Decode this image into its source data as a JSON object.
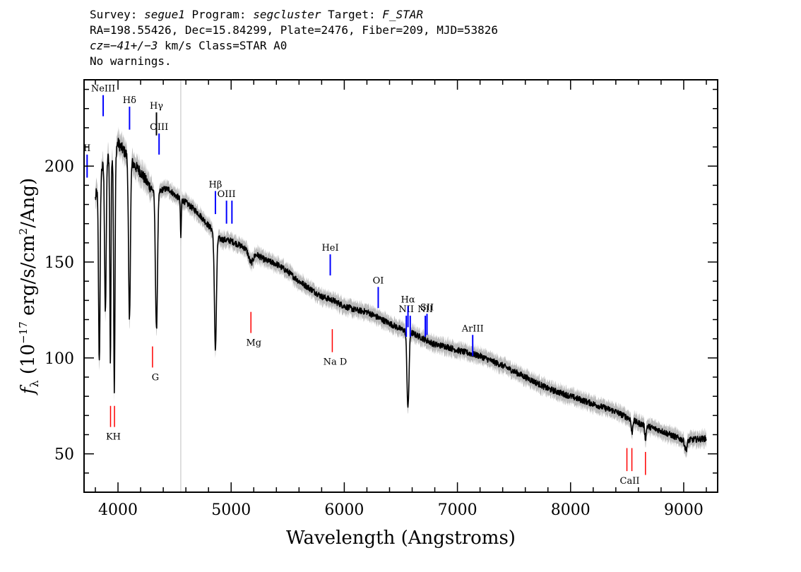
{
  "header": {
    "line1": {
      "survey_label": "Survey: ",
      "survey": "segue1",
      "program_label": " Program: ",
      "program": "segcluster",
      "target_label": " Target: ",
      "target": "F_STAR"
    },
    "line2": "RA=198.55426, Dec=15.84299, Plate=2476, Fiber=209, MJD=53826",
    "line3": {
      "cz": "cz=−41+/−3",
      "rest": " km/s Class=STAR A0"
    },
    "line4": "No warnings."
  },
  "chart_data": {
    "type": "line",
    "xlabel": "Wavelength (Angstroms)",
    "ylabel": "f_λ (10^-17 erg/s/cm²/Ang)",
    "xlim": [
      3700,
      9300
    ],
    "ylim": [
      30,
      245
    ],
    "xticks": [
      4000,
      5000,
      6000,
      7000,
      8000,
      9000
    ],
    "yticks": [
      50,
      100,
      150,
      200
    ],
    "vertical_marker_x": 4555,
    "colors": {
      "spectrum": "#000000",
      "error": "#b3b3b3",
      "emission": "#0000ff",
      "absorption": "#ff0000",
      "marker": "#bdbdbd"
    },
    "continuum": [
      [
        3800,
        183
      ],
      [
        3850,
        198
      ],
      [
        3900,
        204
      ],
      [
        3950,
        206
      ],
      [
        4000,
        212
      ],
      [
        4050,
        208
      ],
      [
        4100,
        204
      ],
      [
        4150,
        200
      ],
      [
        4200,
        197
      ],
      [
        4250,
        192
      ],
      [
        4300,
        188
      ],
      [
        4350,
        186
      ],
      [
        4400,
        188
      ],
      [
        4450,
        188
      ],
      [
        4500,
        185
      ],
      [
        4600,
        181
      ],
      [
        4700,
        176
      ],
      [
        4800,
        169
      ],
      [
        4900,
        162
      ],
      [
        5000,
        161
      ],
      [
        5100,
        158
      ],
      [
        5200,
        155
      ],
      [
        5300,
        151
      ],
      [
        5400,
        149
      ],
      [
        5500,
        145
      ],
      [
        5600,
        140
      ],
      [
        5700,
        136
      ],
      [
        5800,
        132
      ],
      [
        5900,
        130
      ],
      [
        6000,
        127
      ],
      [
        6100,
        125
      ],
      [
        6200,
        124
      ],
      [
        6300,
        121
      ],
      [
        6400,
        118
      ],
      [
        6500,
        115
      ],
      [
        6600,
        113
      ],
      [
        6700,
        110
      ],
      [
        6800,
        107
      ],
      [
        6900,
        106
      ],
      [
        7000,
        104
      ],
      [
        7200,
        101
      ],
      [
        7400,
        96
      ],
      [
        7600,
        90
      ],
      [
        7800,
        84
      ],
      [
        8000,
        80
      ],
      [
        8200,
        76
      ],
      [
        8400,
        72
      ],
      [
        8600,
        66
      ],
      [
        8800,
        62
      ],
      [
        9000,
        57
      ],
      [
        9200,
        58
      ]
    ],
    "absorption_features": [
      {
        "x": 3835,
        "depth": 95,
        "width": 7
      },
      {
        "x": 3889,
        "depth": 80,
        "width": 7
      },
      {
        "x": 3933,
        "depth": 107,
        "width": 5
      },
      {
        "x": 3968,
        "depth": 125,
        "width": 6
      },
      {
        "x": 4101,
        "depth": 85,
        "width": 8
      },
      {
        "x": 4340,
        "depth": 72,
        "width": 9
      },
      {
        "x": 4555,
        "depth": 20,
        "width": 4
      },
      {
        "x": 4861,
        "depth": 60,
        "width": 9
      },
      {
        "x": 5175,
        "depth": 6,
        "width": 20
      },
      {
        "x": 6563,
        "depth": 40,
        "width": 9
      },
      {
        "x": 8542,
        "depth": 7,
        "width": 6
      },
      {
        "x": 8662,
        "depth": 7,
        "width": 6
      },
      {
        "x": 9020,
        "depth": 5,
        "width": 10
      }
    ],
    "emission_lines": [
      {
        "label": "NeIII",
        "x": 3869,
        "y_top": 237,
        "y_bottom": 226
      },
      {
        "label": "Hδ",
        "x": 4102,
        "y_top": 231,
        "y_bottom": 219
      },
      {
        "label": "Hγ",
        "x": 4340,
        "y_top": 228,
        "y_bottom": 216,
        "color": "black"
      },
      {
        "label": "OIII",
        "x": 4363,
        "y_top": 217,
        "y_bottom": 206
      },
      {
        "label": "II",
        "x": 3727,
        "y_top": 206,
        "y_bottom": 194
      },
      {
        "label": "Hβ",
        "x": 4861,
        "y_top": 187,
        "y_bottom": 175
      },
      {
        "label": "OIII",
        "x": 4959,
        "y_top": 182,
        "y_bottom": 170
      },
      {
        "label": "",
        "x": 5007,
        "y_top": 182,
        "y_bottom": 170
      },
      {
        "label": "HeI",
        "x": 5876,
        "y_top": 154,
        "y_bottom": 143
      },
      {
        "label": "OI",
        "x": 6300,
        "y_top": 137,
        "y_bottom": 126
      },
      {
        "label": "NII",
        "x": 6548,
        "y_top": 122,
        "y_bottom": 111
      },
      {
        "label": "Hα",
        "x": 6563,
        "y_top": 127,
        "y_bottom": 116
      },
      {
        "label": "",
        "x": 6583,
        "y_top": 122,
        "y_bottom": 111
      },
      {
        "label": "NII",
        "x": 6716,
        "y_top": 122,
        "y_bottom": 111
      },
      {
        "label": "SII",
        "x": 6731,
        "y_top": 123,
        "y_bottom": 112
      },
      {
        "label": "ArIII",
        "x": 7135,
        "y_top": 112,
        "y_bottom": 101
      }
    ],
    "absorption_lines": [
      {
        "label": "KH",
        "x": 3934,
        "y_top": 75,
        "y_bottom": 64
      },
      {
        "label": "",
        "x": 3969,
        "y_top": 75,
        "y_bottom": 64
      },
      {
        "label": "G",
        "x": 4305,
        "y_top": 106,
        "y_bottom": 95
      },
      {
        "label": "Mg",
        "x": 5175,
        "y_top": 124,
        "y_bottom": 113
      },
      {
        "label": "Na D",
        "x": 5894,
        "y_top": 115,
        "y_bottom": 103
      },
      {
        "label": "CaII",
        "x": 8498,
        "y_top": 53,
        "y_bottom": 41
      },
      {
        "label": "",
        "x": 8542,
        "y_top": 53,
        "y_bottom": 41
      },
      {
        "label": "",
        "x": 8662,
        "y_top": 51,
        "y_bottom": 39
      }
    ]
  }
}
